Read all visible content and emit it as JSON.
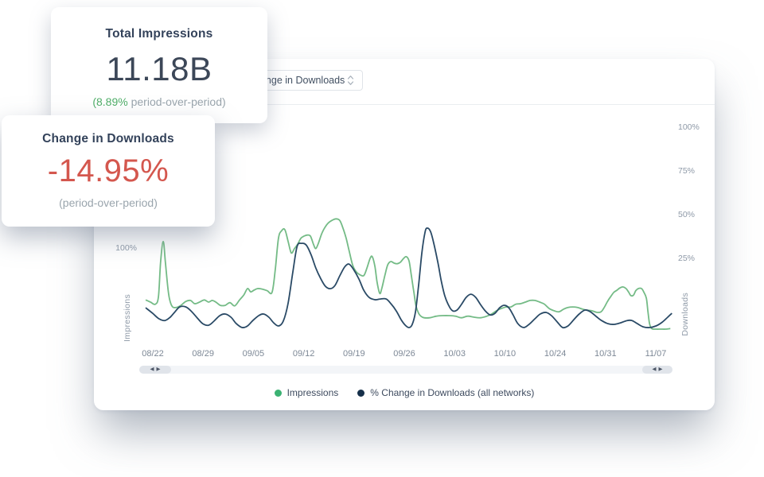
{
  "cards": {
    "impressions": {
      "title": "Total Impressions",
      "value": "11.18B",
      "subtitle_highlight": "(8.89%",
      "subtitle_rest": " period-over-period)"
    },
    "downloads": {
      "title": "Change in Downloads",
      "value": "-14.95%",
      "subtitle": "(period-over-period)"
    }
  },
  "panel": {
    "dropdown": {
      "value": "Change in Downloads"
    }
  },
  "icons": {
    "scroll_left": "◀",
    "scroll_right": "▶"
  },
  "colors": {
    "impressions_line": "#74bb86",
    "impressions_dot": "#3bb273",
    "downloads_line": "#2a4a66",
    "downloads_dot": "#16304a",
    "positive_text": "#4fae68",
    "negative_text": "#d4574e"
  },
  "chart_data": {
    "type": "line",
    "title": "",
    "grid": false,
    "legend_position": "bottom",
    "x_domain": [
      "08/22",
      "11/07"
    ],
    "x_ticks": [
      "08/22",
      "08/29",
      "09/05",
      "09/12",
      "09/19",
      "09/26",
      "10/03",
      "10/10",
      "10/24",
      "10/31",
      "11/07"
    ],
    "left_axis": {
      "label": "Impressions",
      "ticks": [
        {
          "label": "100%",
          "value": 100
        }
      ],
      "range": [
        -76.5,
        335.3
      ]
    },
    "right_axis": {
      "label": "Downloads",
      "ticks": [
        {
          "label": "100%",
          "value": 100
        },
        {
          "label": "75%",
          "value": 75
        },
        {
          "label": "50%",
          "value": 50
        },
        {
          "label": "25%",
          "value": 25
        }
      ],
      "range": [
        -23.6,
        103.6
      ]
    },
    "series": [
      {
        "name": "Impressions",
        "axis": "left",
        "color": "#74bb86",
        "dot_color": "#3bb273",
        "points": [
          [
            1.2,
            4
          ],
          [
            2.1,
            0
          ],
          [
            3,
            -4
          ],
          [
            3.6,
            10
          ],
          [
            4,
            74
          ],
          [
            4.5,
            112
          ],
          [
            4.9,
            74
          ],
          [
            5.5,
            15
          ],
          [
            6.1,
            -7
          ],
          [
            6.9,
            -10
          ],
          [
            7.8,
            -6
          ],
          [
            8.7,
            1
          ],
          [
            9.6,
            3
          ],
          [
            10.4,
            -3
          ],
          [
            11.3,
            0
          ],
          [
            12.2,
            4
          ],
          [
            13,
            0
          ],
          [
            13.7,
            3
          ],
          [
            14.5,
            -1
          ],
          [
            15.2,
            -6
          ],
          [
            16.1,
            -6
          ],
          [
            17,
            -1
          ],
          [
            17.9,
            -7
          ],
          [
            18.8,
            4
          ],
          [
            19.6,
            13
          ],
          [
            20.3,
            25
          ],
          [
            20.9,
            19
          ],
          [
            21.5,
            22
          ],
          [
            22.2,
            25
          ],
          [
            23.1,
            24
          ],
          [
            24,
            21
          ],
          [
            24.9,
            18
          ],
          [
            25.5,
            59
          ],
          [
            26.1,
            118
          ],
          [
            26.7,
            132
          ],
          [
            27.3,
            134
          ],
          [
            27.9,
            113
          ],
          [
            28.5,
            91
          ],
          [
            29.1,
            99
          ],
          [
            29.7,
            107
          ],
          [
            30.3,
            118
          ],
          [
            30.9,
            122
          ],
          [
            31.5,
            124
          ],
          [
            32.1,
            122
          ],
          [
            32.7,
            106
          ],
          [
            33.1,
            99
          ],
          [
            33.6,
            109
          ],
          [
            34.2,
            126
          ],
          [
            34.8,
            138
          ],
          [
            35.4,
            146
          ],
          [
            36.1,
            151
          ],
          [
            36.9,
            154
          ],
          [
            37.6,
            151
          ],
          [
            38.2,
            137
          ],
          [
            38.8,
            118
          ],
          [
            39.4,
            93
          ],
          [
            40,
            69
          ],
          [
            40.6,
            57
          ],
          [
            41.3,
            51
          ],
          [
            42.1,
            49
          ],
          [
            42.7,
            63
          ],
          [
            43.3,
            81
          ],
          [
            43.7,
            84
          ],
          [
            44.2,
            66
          ],
          [
            44.6,
            37
          ],
          [
            45.1,
            16
          ],
          [
            45.5,
            26
          ],
          [
            46.1,
            51
          ],
          [
            46.6,
            69
          ],
          [
            47.2,
            75
          ],
          [
            47.8,
            72
          ],
          [
            48.4,
            71
          ],
          [
            49,
            74
          ],
          [
            49.6,
            81
          ],
          [
            50.1,
            84
          ],
          [
            50.6,
            76
          ],
          [
            51,
            51
          ],
          [
            51.5,
            18
          ],
          [
            51.9,
            -7
          ],
          [
            52.4,
            -21
          ],
          [
            52.8,
            -26
          ],
          [
            53.4,
            -29
          ],
          [
            54.5,
            -29
          ],
          [
            55.7,
            -26
          ],
          [
            56.9,
            -25
          ],
          [
            58.1,
            -25
          ],
          [
            59.3,
            -26
          ],
          [
            60.4,
            -29
          ],
          [
            61.6,
            -26
          ],
          [
            62.8,
            -28
          ],
          [
            64,
            -29
          ],
          [
            65.2,
            -26
          ],
          [
            66.1,
            -22
          ],
          [
            67,
            -16
          ],
          [
            67.9,
            -12
          ],
          [
            68.8,
            -9
          ],
          [
            69.7,
            -9
          ],
          [
            70.6,
            -4
          ],
          [
            71.5,
            -3
          ],
          [
            72.4,
            0
          ],
          [
            73.3,
            3
          ],
          [
            74.2,
            3
          ],
          [
            75.1,
            0
          ],
          [
            76,
            -4
          ],
          [
            76.9,
            -12
          ],
          [
            77.8,
            -16
          ],
          [
            78.7,
            -18
          ],
          [
            79.6,
            -13
          ],
          [
            80.4,
            -10
          ],
          [
            81.3,
            -9
          ],
          [
            82.2,
            -10
          ],
          [
            83.1,
            -13
          ],
          [
            84,
            -15
          ],
          [
            84.9,
            -16
          ],
          [
            85.8,
            -19
          ],
          [
            86.6,
            -18
          ],
          [
            87.2,
            -10
          ],
          [
            87.8,
            1
          ],
          [
            88.4,
            10
          ],
          [
            89,
            18
          ],
          [
            89.6,
            22
          ],
          [
            90.1,
            26
          ],
          [
            90.7,
            28
          ],
          [
            91.3,
            25
          ],
          [
            91.8,
            18
          ],
          [
            92.2,
            12
          ],
          [
            92.7,
            13
          ],
          [
            93.1,
            21
          ],
          [
            93.6,
            25
          ],
          [
            94.2,
            25
          ],
          [
            94.6,
            19
          ],
          [
            95.1,
            7
          ],
          [
            95.4,
            -18
          ],
          [
            95.7,
            -40
          ],
          [
            96.1,
            -49
          ],
          [
            96.9,
            -50
          ],
          [
            97.8,
            -50
          ],
          [
            98.7,
            -50
          ],
          [
            99.6,
            -49
          ]
        ]
      },
      {
        "name": "% Change in Downloads (all networks)",
        "axis": "right",
        "color": "#2a4a66",
        "dot_color": "#16304a",
        "points": [
          [
            1.2,
            -3.2
          ],
          [
            2.5,
            -6.4
          ],
          [
            3.7,
            -9.5
          ],
          [
            4.8,
            -10.5
          ],
          [
            5.8,
            -8.6
          ],
          [
            6.7,
            -5.5
          ],
          [
            7.6,
            -2.7
          ],
          [
            8.7,
            -2.7
          ],
          [
            9.7,
            -5
          ],
          [
            10.9,
            -9.1
          ],
          [
            11.9,
            -12.3
          ],
          [
            13,
            -13.2
          ],
          [
            14,
            -10.9
          ],
          [
            15.1,
            -7.7
          ],
          [
            16.1,
            -6.8
          ],
          [
            17.2,
            -8.6
          ],
          [
            18.2,
            -12.3
          ],
          [
            19.3,
            -14.5
          ],
          [
            20.3,
            -13.6
          ],
          [
            21.3,
            -10.5
          ],
          [
            22.4,
            -7.7
          ],
          [
            23.3,
            -6.8
          ],
          [
            24.3,
            -8.6
          ],
          [
            25.2,
            -11.8
          ],
          [
            26.1,
            -13.6
          ],
          [
            27,
            -10.9
          ],
          [
            27.9,
            -0.9
          ],
          [
            28.8,
            17.3
          ],
          [
            29.6,
            31.8
          ],
          [
            30.4,
            33.6
          ],
          [
            31.3,
            32.7
          ],
          [
            32.2,
            27.3
          ],
          [
            33.1,
            19.5
          ],
          [
            34,
            13.6
          ],
          [
            34.9,
            9.1
          ],
          [
            35.8,
            7.7
          ],
          [
            36.7,
            9.5
          ],
          [
            37.6,
            15
          ],
          [
            38.5,
            20
          ],
          [
            39.3,
            21.8
          ],
          [
            40.1,
            19.1
          ],
          [
            41.2,
            13.2
          ],
          [
            42.1,
            6.8
          ],
          [
            43.1,
            2.7
          ],
          [
            44.2,
            1.4
          ],
          [
            45.2,
            1.8
          ],
          [
            46.3,
            1.8
          ],
          [
            47.2,
            -0.9
          ],
          [
            48.2,
            -5
          ],
          [
            49.1,
            -10
          ],
          [
            49.9,
            -13.2
          ],
          [
            50.6,
            -14.5
          ],
          [
            51.2,
            -12.7
          ],
          [
            51.8,
            -5.5
          ],
          [
            52.4,
            10
          ],
          [
            53,
            28.2
          ],
          [
            53.6,
            40
          ],
          [
            54,
            42.3
          ],
          [
            54.6,
            40.5
          ],
          [
            55.2,
            34.1
          ],
          [
            56,
            22.7
          ],
          [
            56.6,
            12.7
          ],
          [
            57.3,
            3.6
          ],
          [
            58.1,
            -2.3
          ],
          [
            58.8,
            -5
          ],
          [
            59.6,
            -4.5
          ],
          [
            60.4,
            -1.4
          ],
          [
            61.3,
            2.7
          ],
          [
            62.2,
            4.5
          ],
          [
            63.1,
            2.7
          ],
          [
            64,
            -1.4
          ],
          [
            64.9,
            -5
          ],
          [
            65.8,
            -7.3
          ],
          [
            66.7,
            -6.4
          ],
          [
            67.6,
            -3.2
          ],
          [
            68.4,
            -1.8
          ],
          [
            69.3,
            -3.2
          ],
          [
            70.1,
            -7.3
          ],
          [
            71,
            -12.3
          ],
          [
            72.1,
            -14.5
          ],
          [
            73.1,
            -12.7
          ],
          [
            74.2,
            -9.5
          ],
          [
            75.2,
            -6.8
          ],
          [
            76.3,
            -5.9
          ],
          [
            77.3,
            -7.7
          ],
          [
            78.4,
            -11.4
          ],
          [
            79.4,
            -14.5
          ],
          [
            80.4,
            -13.6
          ],
          [
            81.5,
            -10
          ],
          [
            82.5,
            -6.8
          ],
          [
            83.6,
            -4.5
          ],
          [
            84.6,
            -5.5
          ],
          [
            85.7,
            -8.2
          ],
          [
            86.7,
            -10.5
          ],
          [
            87.9,
            -12.3
          ],
          [
            89.1,
            -12.7
          ],
          [
            90.3,
            -11.8
          ],
          [
            91.5,
            -10.5
          ],
          [
            92.4,
            -10.5
          ],
          [
            93.4,
            -12.3
          ],
          [
            94.5,
            -14.1
          ],
          [
            95.7,
            -14.5
          ],
          [
            96.9,
            -13.6
          ],
          [
            98.1,
            -11.4
          ],
          [
            99.1,
            -8.6
          ],
          [
            99.9,
            -6.4
          ]
        ]
      }
    ]
  }
}
